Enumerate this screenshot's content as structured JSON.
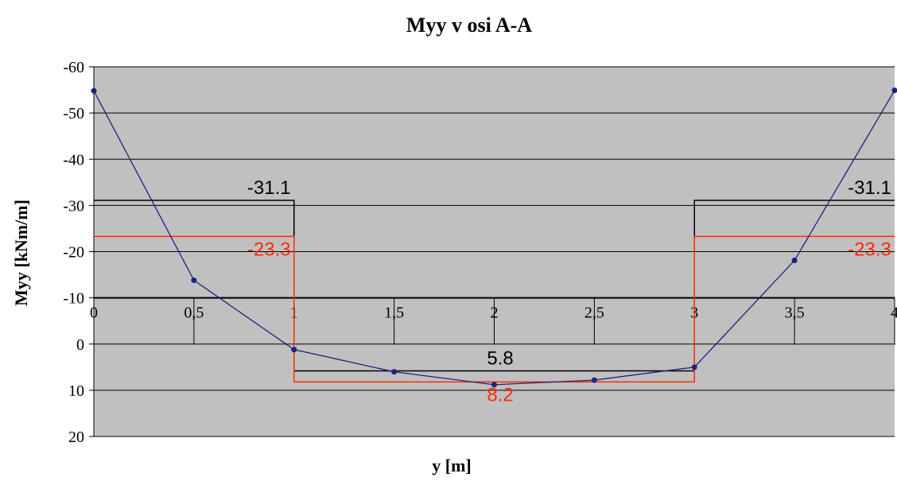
{
  "chart_data": {
    "type": "line",
    "title": "Myy v osi A-A",
    "xlabel": "y [m]",
    "ylabel": "Myy [kNm/m]",
    "xlim": [
      0,
      4
    ],
    "ylim": [
      -60,
      20
    ],
    "y_reversed": true,
    "grid": true,
    "x_ticks": [
      {
        "value": 0,
        "label": "0"
      },
      {
        "value": 0.5,
        "label": "0,5"
      },
      {
        "value": 1,
        "label": "1"
      },
      {
        "value": 1.5,
        "label": "1,5"
      },
      {
        "value": 2,
        "label": "2"
      },
      {
        "value": 2.5,
        "label": "2,5"
      },
      {
        "value": 3,
        "label": "3"
      },
      {
        "value": 3.5,
        "label": "3,5"
      },
      {
        "value": 4,
        "label": "4"
      }
    ],
    "y_ticks": [
      {
        "value": -60,
        "label": "-60"
      },
      {
        "value": -50,
        "label": "-50"
      },
      {
        "value": -40,
        "label": "-40"
      },
      {
        "value": -30,
        "label": "-30"
      },
      {
        "value": -20,
        "label": "-20"
      },
      {
        "value": -10,
        "label": "-10"
      },
      {
        "value": 0,
        "label": "0"
      },
      {
        "value": 10,
        "label": "10"
      },
      {
        "value": 20,
        "label": "20"
      }
    ],
    "series": [
      {
        "color": "#1a237e",
        "x": [
          0,
          0.5,
          1,
          1.5,
          2,
          2.5,
          3,
          3.5,
          4
        ],
        "y": [
          -54.8,
          -13.8,
          1.2,
          6.0,
          8.8,
          7.8,
          5.0,
          -18.1,
          -54.9
        ]
      }
    ],
    "steps": [
      {
        "color": "#000000",
        "segments": [
          {
            "x0": 0,
            "x1": 1,
            "y": -31.1
          },
          {
            "x0": 1,
            "x1": 3,
            "y": 5.8
          },
          {
            "x0": 3,
            "x1": 4,
            "y": -31.1
          }
        ]
      },
      {
        "color": "#ff2a00",
        "segments": [
          {
            "x0": 0,
            "x1": 1,
            "y": -23.3
          },
          {
            "x0": 1,
            "x1": 3,
            "y": 8.2
          },
          {
            "x0": 3,
            "x1": 4,
            "y": -23.3
          }
        ]
      }
    ],
    "annotations": [
      {
        "text": "-31.1",
        "x": 0.875,
        "y": -31.1,
        "color": "#000000",
        "offset": "above"
      },
      {
        "text": "-23.3",
        "x": 0.875,
        "y": -23.3,
        "color": "#ff2a00",
        "offset": "below"
      },
      {
        "text": "-31.1",
        "x": 3.875,
        "y": -31.1,
        "color": "#000000",
        "offset": "above"
      },
      {
        "text": "-23.3",
        "x": 3.875,
        "y": -23.3,
        "color": "#ff2a00",
        "offset": "below"
      },
      {
        "text": "5.8",
        "x": 2.03,
        "y": 5.8,
        "color": "#000000",
        "offset": "above"
      },
      {
        "text": "8.2",
        "x": 2.03,
        "y": 8.2,
        "color": "#ff2a00",
        "offset": "below"
      }
    ]
  }
}
